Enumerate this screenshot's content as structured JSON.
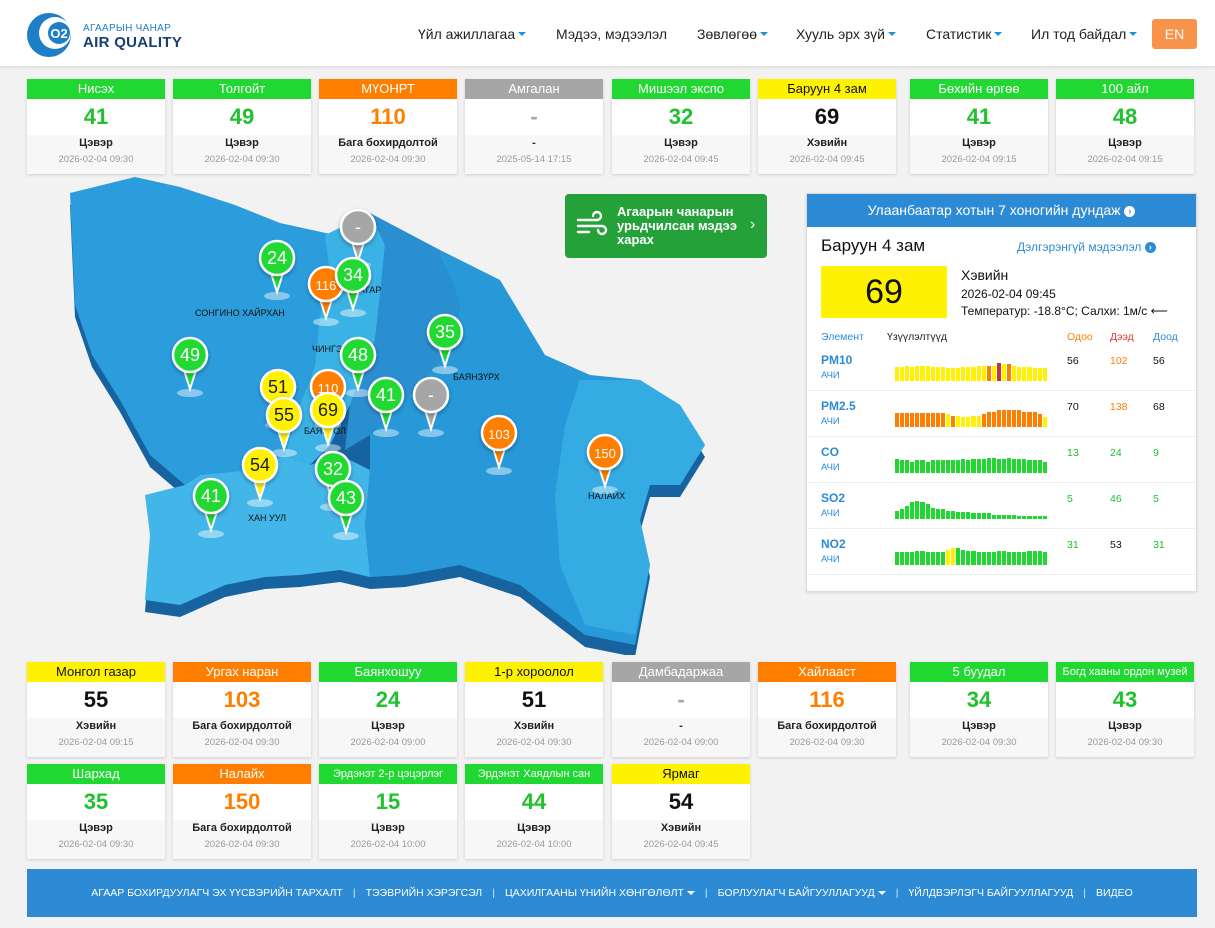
{
  "colors": {
    "good": "#21d832",
    "moderate": "#fff200",
    "unhealthy_sensitive": "#ff7e00",
    "nodata": "#a6a6a6",
    "primary": "#2d8bd6",
    "forecast": "#25a13a",
    "map_light": "#35a9df",
    "map_dark": "#1d82c8"
  },
  "header": {
    "logo": {
      "subtitle": "АГААРЫН ЧАНАР",
      "title": "AIR QUALITY"
    },
    "nav": [
      "Үйл ажиллагаа",
      "Мэдээ, мэдээлэл",
      "Зөвлөгөө",
      "Хууль эрх зүй",
      "Статистик",
      "Ил тод байдал"
    ],
    "lang": "EN"
  },
  "stations_top": [
    {
      "name": "Нисэх",
      "value": "41",
      "level": "Цэвэр",
      "time": "2026-02-04 09:30",
      "color": "#21d832",
      "vcolor": "#21c12d",
      "tcolor": "#fff"
    },
    {
      "name": "Толгойт",
      "value": "49",
      "level": "Цэвэр",
      "time": "2026-02-04 09:30",
      "color": "#21d832",
      "vcolor": "#21c12d",
      "tcolor": "#fff"
    },
    {
      "name": "МҮОНРТ",
      "value": "110",
      "level": "Бага бохирдолтой",
      "time": "2026-02-04 09:30",
      "color": "#ff7e00",
      "vcolor": "#ff7e00",
      "tcolor": "#fff"
    },
    {
      "name": "Амгалан",
      "value": "-",
      "level": "-",
      "time": "2025-05-14 17:15",
      "color": "#a6a6a6",
      "vcolor": "#a6a6a6",
      "tcolor": "#fff"
    },
    {
      "name": "Мишээл экспо",
      "value": "32",
      "level": "Цэвэр",
      "time": "2026-02-04 09:45",
      "color": "#21d832",
      "vcolor": "#21c12d",
      "tcolor": "#fff"
    },
    {
      "name": "Баруун 4 зам",
      "value": "69",
      "level": "Хэвийн",
      "time": "2026-02-04 09:45",
      "color": "#fff200",
      "vcolor": "#111",
      "tcolor": "#111"
    },
    {
      "name": "Бөхийн өргөө",
      "value": "41",
      "level": "Цэвэр",
      "time": "2026-02-04 09:15",
      "color": "#21d832",
      "vcolor": "#21c12d",
      "tcolor": "#fff"
    },
    {
      "name": "100 айл",
      "value": "48",
      "level": "Цэвэр",
      "time": "2026-02-04 09:15",
      "color": "#21d832",
      "vcolor": "#21c12d",
      "tcolor": "#fff"
    }
  ],
  "stations_bottom": [
    {
      "name": "Монгол газар",
      "value": "55",
      "level": "Хэвийн",
      "time": "2026-02-04 09:15",
      "color": "#fff200",
      "vcolor": "#111",
      "tcolor": "#111"
    },
    {
      "name": "Ургах наран",
      "value": "103",
      "level": "Бага бохирдолтой",
      "time": "2026-02-04 09:30",
      "color": "#ff7e00",
      "vcolor": "#ff7e00",
      "tcolor": "#fff"
    },
    {
      "name": "Баянхошуу",
      "value": "24",
      "level": "Цэвэр",
      "time": "2026-02-04 09:00",
      "color": "#21d832",
      "vcolor": "#21c12d",
      "tcolor": "#fff"
    },
    {
      "name": "1-р хороолол",
      "value": "51",
      "level": "Хэвийн",
      "time": "2026-02-04 09:30",
      "color": "#fff200",
      "vcolor": "#111",
      "tcolor": "#111"
    },
    {
      "name": "Дамбадаржаа",
      "value": "-",
      "level": "-",
      "time": "2026-02-04 09:00",
      "color": "#a6a6a6",
      "vcolor": "#a6a6a6",
      "tcolor": "#fff"
    },
    {
      "name": "Хайлааст",
      "value": "116",
      "level": "Бага бохирдолтой",
      "time": "2026-02-04 09:30",
      "color": "#ff7e00",
      "vcolor": "#ff7e00",
      "tcolor": "#fff"
    },
    {
      "name": "5 буудал",
      "value": "34",
      "level": "Цэвэр",
      "time": "2026-02-04 09:30",
      "color": "#21d832",
      "vcolor": "#21c12d",
      "tcolor": "#fff"
    },
    {
      "name": "Богд хааны ордон музей",
      "value": "43",
      "level": "Цэвэр",
      "time": "2026-02-04 09:30",
      "color": "#21d832",
      "vcolor": "#21c12d",
      "tcolor": "#fff"
    },
    {
      "name": "Шархад",
      "value": "35",
      "level": "Цэвэр",
      "time": "2026-02-04 09:30",
      "color": "#21d832",
      "vcolor": "#21c12d",
      "tcolor": "#fff"
    },
    {
      "name": "Налайх",
      "value": "150",
      "level": "Бага бохирдолтой",
      "time": "2026-02-04 09:30",
      "color": "#ff7e00",
      "vcolor": "#ff7e00",
      "tcolor": "#fff"
    },
    {
      "name": "Эрдэнэт 2-р цэцэрлэг",
      "value": "15",
      "level": "Цэвэр",
      "time": "2026-02-04 10:00",
      "color": "#21d832",
      "vcolor": "#21c12d",
      "tcolor": "#fff"
    },
    {
      "name": "Эрдэнэт Хаядлын сан",
      "value": "44",
      "level": "Цэвэр",
      "time": "2026-02-04 10:00",
      "color": "#21d832",
      "vcolor": "#21c12d",
      "tcolor": "#fff"
    },
    {
      "name": "Ярмаг",
      "value": "54",
      "level": "Хэвийн",
      "time": "2026-02-04 09:45",
      "color": "#fff200",
      "vcolor": "#111",
      "tcolor": "#111"
    }
  ],
  "map": {
    "districts": [
      "СОНГИНО ХАЙРХАН",
      "ЧИНГЭ",
      "БААТАР",
      "БАЯНЗҮРХ",
      "БАЯНГОЛ",
      "ХАН УУЛ",
      "НАЛАЙХ"
    ],
    "pins": [
      {
        "v": "24",
        "c": "#21d832",
        "tc": "#fff"
      },
      {
        "v": "-",
        "c": "#a6a6a6",
        "tc": "#fff"
      },
      {
        "v": "116",
        "c": "#ff7e00",
        "tc": "#fff"
      },
      {
        "v": "34",
        "c": "#21d832",
        "tc": "#fff"
      },
      {
        "v": "35",
        "c": "#21d832",
        "tc": "#fff"
      },
      {
        "v": "49",
        "c": "#21d832",
        "tc": "#fff"
      },
      {
        "v": "48",
        "c": "#21d832",
        "tc": "#fff"
      },
      {
        "v": "51",
        "c": "#fff200",
        "tc": "#222"
      },
      {
        "v": "110",
        "c": "#ff7e00",
        "tc": "#fff"
      },
      {
        "v": "55",
        "c": "#fff200",
        "tc": "#222"
      },
      {
        "v": "69",
        "c": "#fff200",
        "tc": "#222"
      },
      {
        "v": "41",
        "c": "#21d832",
        "tc": "#fff"
      },
      {
        "v": "-",
        "c": "#a6a6a6",
        "tc": "#fff"
      },
      {
        "v": "103",
        "c": "#ff7e00",
        "tc": "#fff"
      },
      {
        "v": "150",
        "c": "#ff7e00",
        "tc": "#fff"
      },
      {
        "v": "54",
        "c": "#fff200",
        "tc": "#222"
      },
      {
        "v": "32",
        "c": "#21d832",
        "tc": "#fff"
      },
      {
        "v": "41",
        "c": "#21d832",
        "tc": "#fff"
      },
      {
        "v": "43",
        "c": "#21d832",
        "tc": "#fff"
      }
    ]
  },
  "forecast": {
    "text": "Агаарын чанарын урьдчилсан мэдээ харах",
    "icon": "wind-icon"
  },
  "panel": {
    "title": "Улаанбаатар хотын 7 хоногийн дундаж",
    "station": "Баруун 4 зам",
    "detail": "Дэлгэрэнгүй мэдээлэл",
    "aqi": "69",
    "level": "Хэвийн",
    "time": "2026-02-04 09:45",
    "weather": "Температур: -18.8°C; Салхи: 1м/с",
    "headers": {
      "element": "Элемент",
      "indicators": "Үзүүлэлтүүд",
      "now": "Одоо",
      "high": "Дээд",
      "low": "Доод"
    },
    "rows": [
      {
        "name": "PM10",
        "unit": "АЧИ",
        "now": "56",
        "high": "102",
        "low": "56",
        "ncolor": "#111",
        "hcolor": "#ff7e00",
        "lcolor": "#111",
        "bars": [
          0.5,
          0.5,
          0.55,
          0.5,
          0.55,
          0.55,
          0.55,
          0.5,
          0.5,
          0.5,
          0.45,
          0.45,
          0.45,
          0.5,
          0.5,
          0.5,
          0.55,
          0.55,
          0.55,
          0.55,
          0.65,
          0.6,
          0.6,
          0.55,
          0.5,
          0.5,
          0.5,
          0.45,
          0.45,
          0.45
        ],
        "bcolors": [
          "#fff200",
          "#fff200",
          "#fff200",
          "#fff200",
          "#fff200",
          "#fff200",
          "#fff200",
          "#fff200",
          "#fff200",
          "#fff200",
          "#fff200",
          "#fff200",
          "#fff200",
          "#fff200",
          "#fff200",
          "#fff200",
          "#fff200",
          "#fff200",
          "#ff7e00",
          "#fff200",
          "#c33",
          "#fff200",
          "#ff7e00",
          "#fff200",
          "#fff200",
          "#fff200",
          "#fff200",
          "#fff200",
          "#fff200",
          "#fff200"
        ]
      },
      {
        "name": "PM2.5",
        "unit": "АЧИ",
        "now": "70",
        "high": "138",
        "low": "68",
        "ncolor": "#111",
        "hcolor": "#ff7e00",
        "lcolor": "#111",
        "bars": [
          0.5,
          0.5,
          0.5,
          0.5,
          0.5,
          0.5,
          0.5,
          0.5,
          0.5,
          0.5,
          0.45,
          0.4,
          0.4,
          0.35,
          0.35,
          0.4,
          0.4,
          0.45,
          0.55,
          0.55,
          0.6,
          0.6,
          0.6,
          0.6,
          0.6,
          0.55,
          0.55,
          0.55,
          0.45,
          0.35
        ],
        "bcolors": [
          "#ff7e00",
          "#ff7e00",
          "#ff7e00",
          "#ff7e00",
          "#ff7e00",
          "#ff7e00",
          "#ff7e00",
          "#ff7e00",
          "#ff7e00",
          "#ff7e00",
          "#fff200",
          "#ff7e00",
          "#fff200",
          "#fff200",
          "#fff200",
          "#fff200",
          "#fff200",
          "#ff7e00",
          "#ff7e00",
          "#ff7e00",
          "#ff7e00",
          "#ff7e00",
          "#ff7e00",
          "#ff7e00",
          "#ff7e00",
          "#ff7e00",
          "#ff7e00",
          "#ff7e00",
          "#ff7e00",
          "#fff200"
        ]
      },
      {
        "name": "CO",
        "unit": "АЧИ",
        "now": "13",
        "high": "24",
        "low": "9",
        "ncolor": "#21c12d",
        "hcolor": "#21c12d",
        "lcolor": "#21c12d",
        "bars": [
          0.5,
          0.45,
          0.45,
          0.4,
          0.45,
          0.45,
          0.4,
          0.45,
          0.45,
          0.45,
          0.45,
          0.45,
          0.45,
          0.5,
          0.45,
          0.5,
          0.5,
          0.5,
          0.55,
          0.55,
          0.5,
          0.5,
          0.55,
          0.5,
          0.5,
          0.5,
          0.45,
          0.45,
          0.45,
          0.4
        ],
        "bcolors": [
          "#21d832"
        ]
      },
      {
        "name": "SO2",
        "unit": "АЧИ",
        "now": "5",
        "high": "46",
        "low": "5",
        "ncolor": "#21c12d",
        "hcolor": "#21c12d",
        "lcolor": "#21c12d",
        "bars": [
          0.3,
          0.35,
          0.45,
          0.6,
          0.65,
          0.6,
          0.55,
          0.4,
          0.35,
          0.35,
          0.3,
          0.3,
          0.25,
          0.25,
          0.25,
          0.2,
          0.2,
          0.2,
          0.2,
          0.15,
          0.15,
          0.15,
          0.15,
          0.15,
          0.12,
          0.12,
          0.12,
          0.12,
          0.1,
          0.1
        ],
        "bcolors": [
          "#21d832"
        ]
      },
      {
        "name": "NO2",
        "unit": "АЧИ",
        "now": "31",
        "high": "53",
        "low": "31",
        "ncolor": "#21c12d",
        "hcolor": "#111",
        "lcolor": "#21c12d",
        "bars": [
          0.45,
          0.45,
          0.45,
          0.45,
          0.5,
          0.5,
          0.45,
          0.45,
          0.45,
          0.45,
          0.55,
          0.6,
          0.6,
          0.55,
          0.5,
          0.5,
          0.45,
          0.45,
          0.45,
          0.45,
          0.5,
          0.5,
          0.45,
          0.45,
          0.45,
          0.45,
          0.5,
          0.5,
          0.5,
          0.45
        ],
        "bcolors": [
          "#21d832",
          "#21d832",
          "#21d832",
          "#21d832",
          "#21d832",
          "#21d832",
          "#21d832",
          "#21d832",
          "#21d832",
          "#21d832",
          "#fff200",
          "#fff200",
          "#21d832",
          "#21d832",
          "#21d832",
          "#21d832",
          "#21d832",
          "#21d832",
          "#21d832",
          "#21d832",
          "#21d832",
          "#21d832",
          "#21d832",
          "#21d832",
          "#21d832",
          "#21d832",
          "#21d832",
          "#21d832",
          "#21d832",
          "#21d832"
        ]
      }
    ]
  },
  "footer": [
    "АГААР БОХИРДУУЛАГЧ ЭХ ҮҮСВЭРИЙН ТАРХАЛТ",
    "ТЭЭВРИЙН ХЭРЭГСЭЛ",
    "ЦАХИЛГААНЫ ҮНИЙН ХӨНГӨЛӨЛТ",
    "БОРЛУУЛАГЧ БАЙГУУЛЛАГУУД",
    "ҮЙЛДВЭРЛЭГЧ БАЙГУУЛЛАГУУД",
    "ВИДЕО"
  ]
}
